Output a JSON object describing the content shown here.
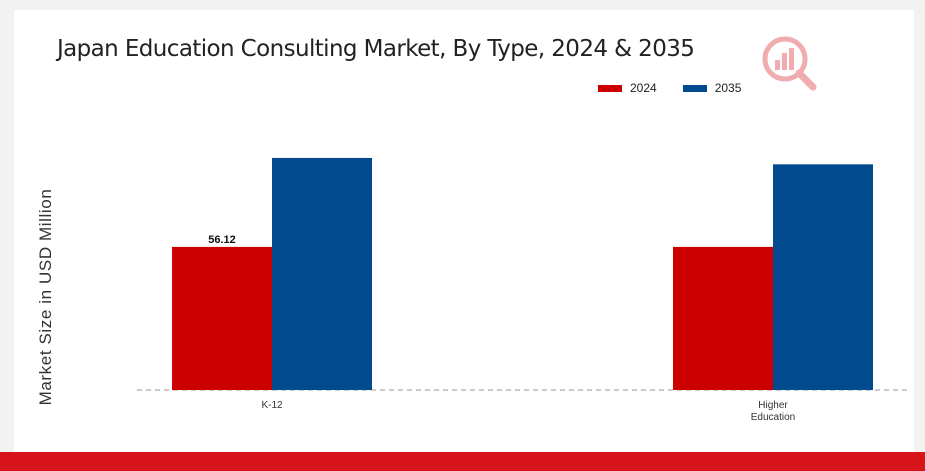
{
  "colors": {
    "series_2024": "#cc0000",
    "series_2035": "#004a8d",
    "brand_red": "#d7141a"
  },
  "icons": {
    "logo": "bar-chart-magnifier-logo"
  },
  "chart_data": {
    "type": "bar",
    "title": "Japan Education Consulting Market, By Type, 2024 & 2035",
    "xlabel": "",
    "ylabel": "Market Size in USD Million",
    "categories": [
      "K-12",
      "Higher Education"
    ],
    "series": [
      {
        "name": "2024",
        "values": [
          56.12,
          56.12
        ],
        "data_labels": [
          "56.12",
          ""
        ]
      },
      {
        "name": "2035",
        "values": [
          91.0,
          88.5
        ],
        "data_labels": [
          "",
          ""
        ]
      }
    ],
    "ylim": [
      0,
      100
    ],
    "grid": false,
    "legend_position": "top-right"
  }
}
